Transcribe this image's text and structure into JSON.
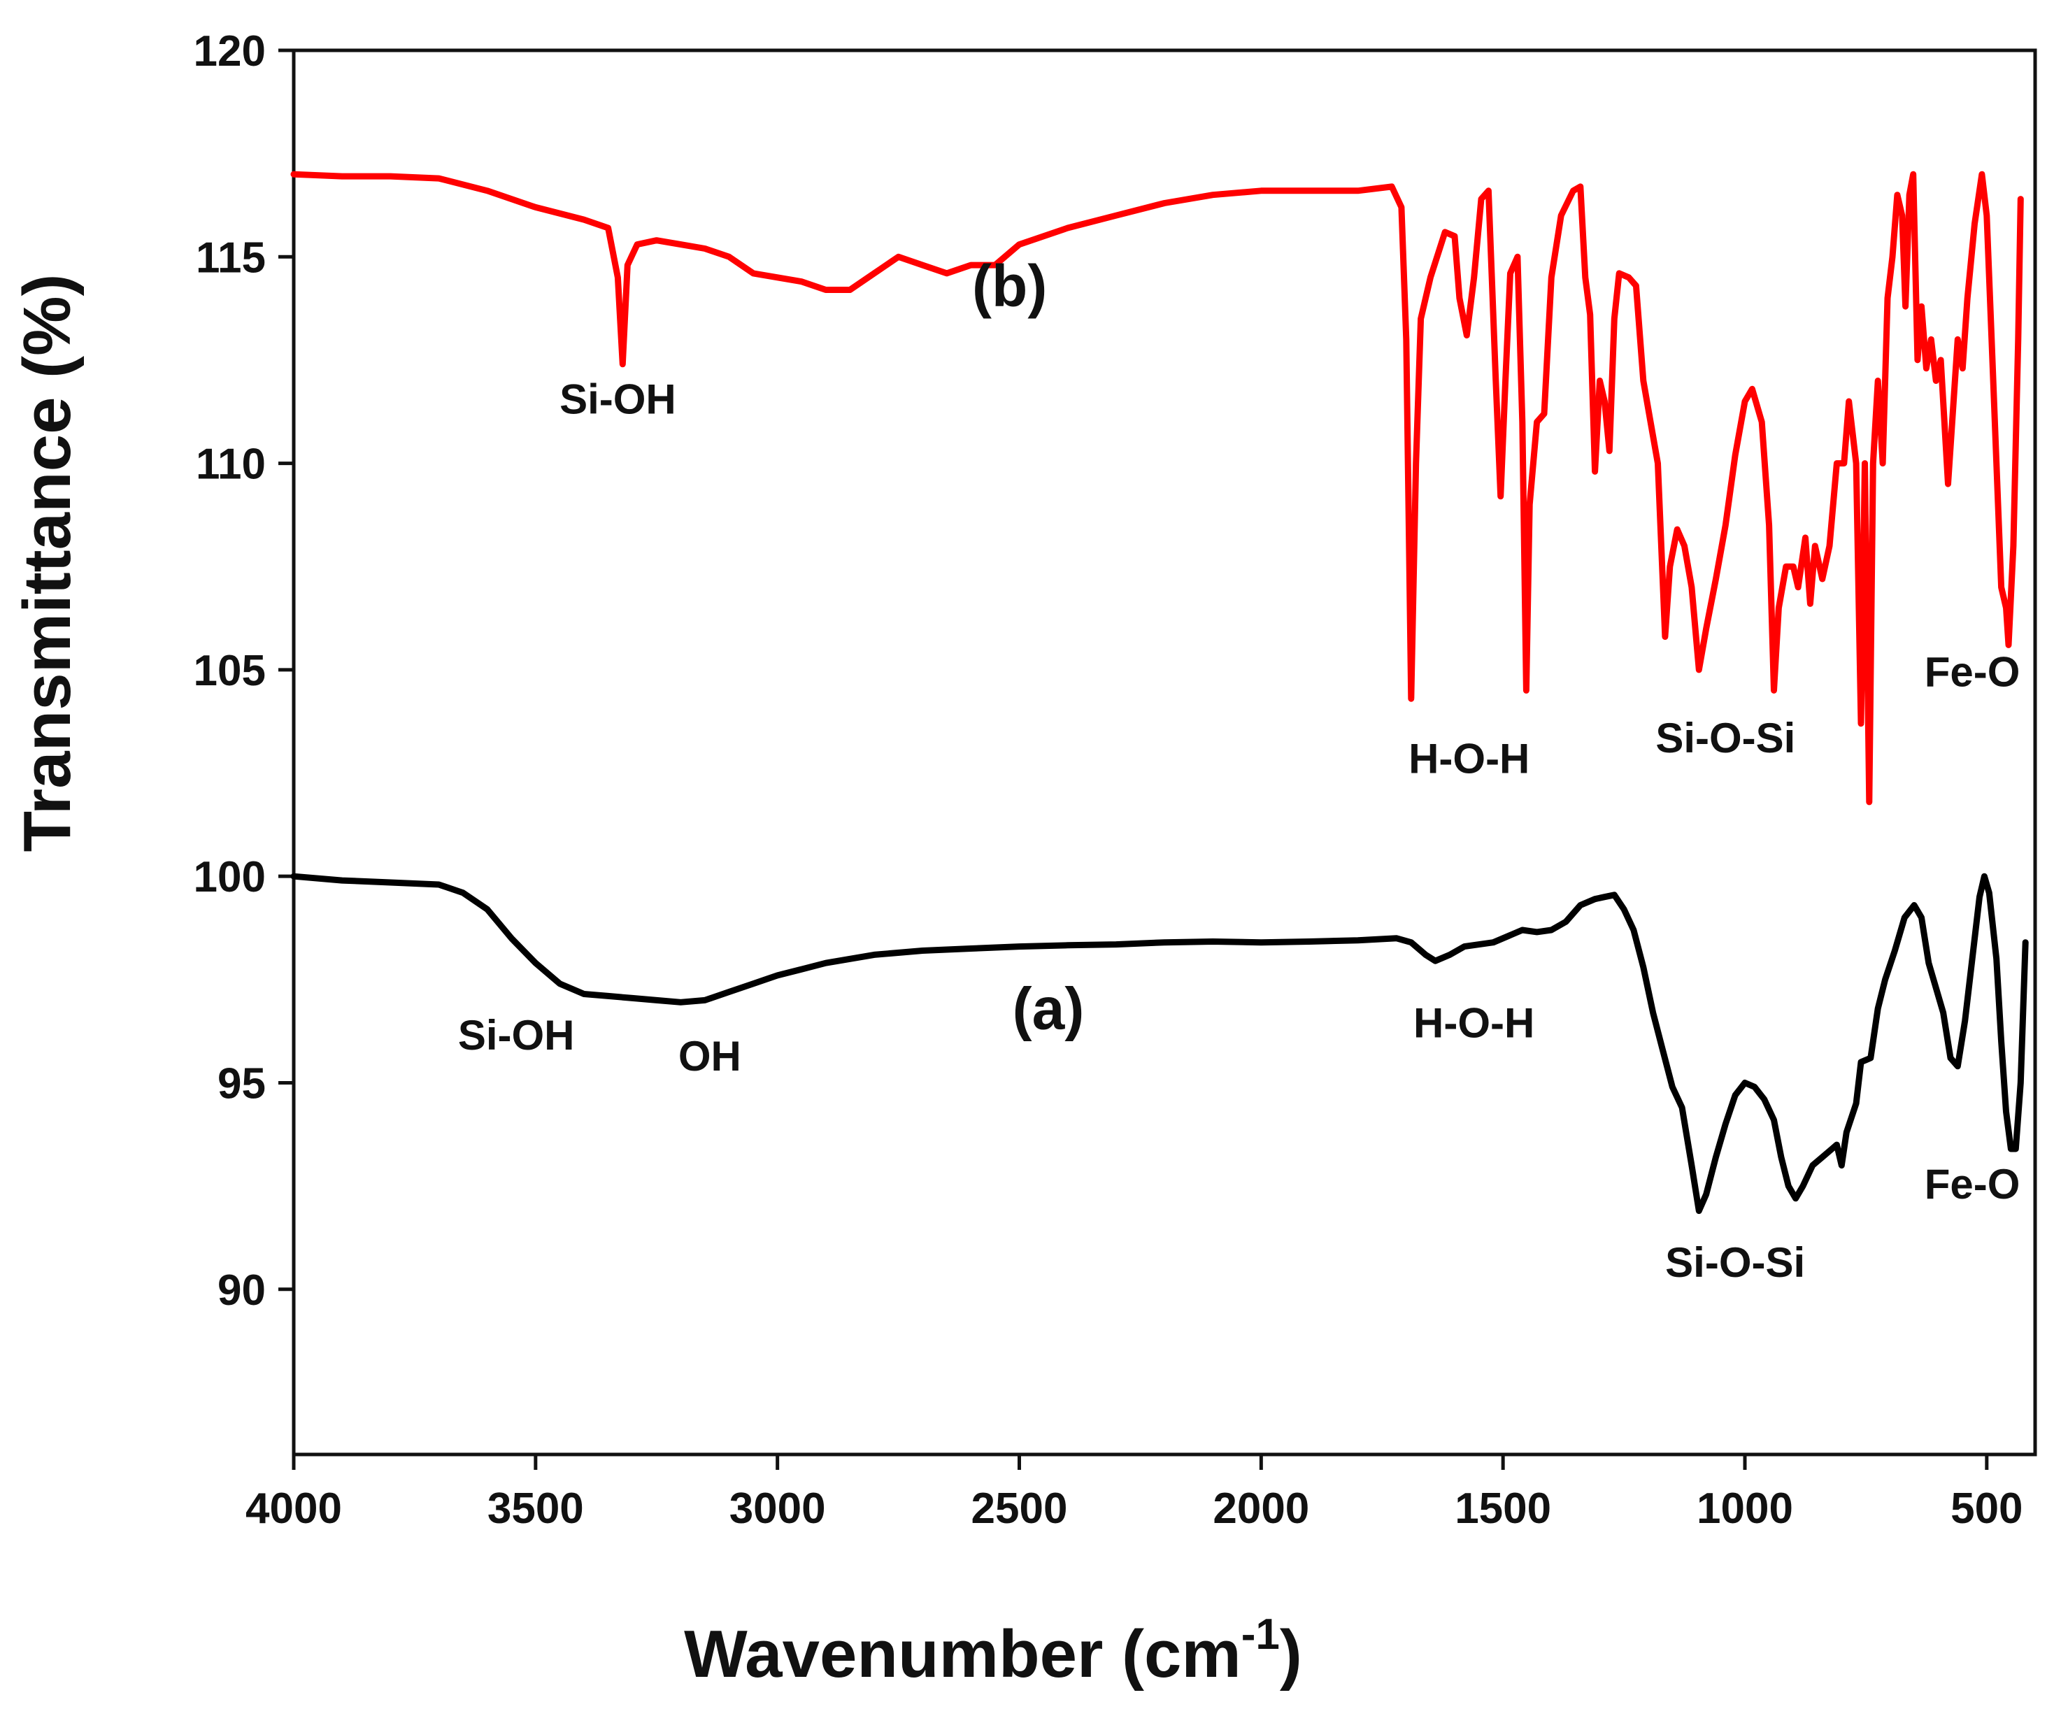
{
  "chart_data": {
    "type": "line",
    "title": "",
    "xlabel": "Wavenumber (cm",
    "xlabel_superscript": "-1",
    "xlabel_suffix": ")",
    "ylabel": "Transmittance (%)",
    "xlim": [
      4000,
      400
    ],
    "ylim": [
      86,
      120
    ],
    "x_reversed": true,
    "grid": false,
    "x_ticks": [
      4000,
      3500,
      3000,
      2500,
      2000,
      1500,
      1000,
      500
    ],
    "y_ticks": [
      90,
      95,
      100,
      105,
      110,
      115,
      120
    ],
    "series": [
      {
        "name": "(b)",
        "color": "#ff0000",
        "points": [
          [
            4000,
            117
          ],
          [
            3900,
            116.95
          ],
          [
            3800,
            116.95
          ],
          [
            3700,
            116.9
          ],
          [
            3600,
            116.6
          ],
          [
            3500,
            116.2
          ],
          [
            3400,
            115.9
          ],
          [
            3350,
            115.7
          ],
          [
            3330,
            114.5
          ],
          [
            3320,
            112.4
          ],
          [
            3310,
            114.8
          ],
          [
            3290,
            115.3
          ],
          [
            3250,
            115.4
          ],
          [
            3200,
            115.3
          ],
          [
            3150,
            115.2
          ],
          [
            3100,
            115
          ],
          [
            3050,
            114.6
          ],
          [
            3000,
            114.5
          ],
          [
            2950,
            114.4
          ],
          [
            2900,
            114.2
          ],
          [
            2850,
            114.2
          ],
          [
            2800,
            114.6
          ],
          [
            2750,
            115
          ],
          [
            2700,
            114.8
          ],
          [
            2650,
            114.6
          ],
          [
            2600,
            114.8
          ],
          [
            2550,
            114.8
          ],
          [
            2500,
            115.3
          ],
          [
            2400,
            115.7
          ],
          [
            2300,
            116
          ],
          [
            2200,
            116.3
          ],
          [
            2100,
            116.5
          ],
          [
            2000,
            116.6
          ],
          [
            1900,
            116.6
          ],
          [
            1800,
            116.6
          ],
          [
            1730,
            116.7
          ],
          [
            1710,
            116.2
          ],
          [
            1700,
            113
          ],
          [
            1690,
            104.3
          ],
          [
            1680,
            110
          ],
          [
            1670,
            113.5
          ],
          [
            1650,
            114.5
          ],
          [
            1620,
            115.6
          ],
          [
            1600,
            115.5
          ],
          [
            1590,
            114
          ],
          [
            1575,
            113.1
          ],
          [
            1560,
            114.5
          ],
          [
            1545,
            116.4
          ],
          [
            1530,
            116.6
          ],
          [
            1515,
            112
          ],
          [
            1505,
            109.2
          ],
          [
            1495,
            112
          ],
          [
            1485,
            114.6
          ],
          [
            1470,
            115
          ],
          [
            1460,
            111
          ],
          [
            1452,
            104.5
          ],
          [
            1445,
            109
          ],
          [
            1430,
            111
          ],
          [
            1415,
            111.2
          ],
          [
            1400,
            114.5
          ],
          [
            1380,
            116
          ],
          [
            1355,
            116.6
          ],
          [
            1340,
            116.7
          ],
          [
            1330,
            114.5
          ],
          [
            1320,
            113.6
          ],
          [
            1310,
            109.8
          ],
          [
            1300,
            112
          ],
          [
            1290,
            111.5
          ],
          [
            1280,
            110.3
          ],
          [
            1270,
            113.5
          ],
          [
            1260,
            114.6
          ],
          [
            1240,
            114.5
          ],
          [
            1225,
            114.3
          ],
          [
            1210,
            112
          ],
          [
            1195,
            111
          ],
          [
            1180,
            110
          ],
          [
            1165,
            105.8
          ],
          [
            1155,
            107.5
          ],
          [
            1140,
            108.4
          ],
          [
            1125,
            108
          ],
          [
            1110,
            107
          ],
          [
            1095,
            105
          ],
          [
            1080,
            106
          ],
          [
            1060,
            107.2
          ],
          [
            1040,
            108.5
          ],
          [
            1020,
            110.2
          ],
          [
            1000,
            111.5
          ],
          [
            985,
            111.8
          ],
          [
            965,
            111
          ],
          [
            950,
            108.5
          ],
          [
            940,
            104.5
          ],
          [
            930,
            106.5
          ],
          [
            915,
            107.5
          ],
          [
            900,
            107.5
          ],
          [
            890,
            107
          ],
          [
            875,
            108.2
          ],
          [
            865,
            106.6
          ],
          [
            855,
            108
          ],
          [
            840,
            107.2
          ],
          [
            825,
            108
          ],
          [
            810,
            110
          ],
          [
            795,
            110
          ],
          [
            785,
            111.5
          ],
          [
            770,
            110
          ],
          [
            760,
            103.7
          ],
          [
            752,
            110
          ],
          [
            743,
            101.8
          ],
          [
            735,
            110
          ],
          [
            725,
            112
          ],
          [
            715,
            110
          ],
          [
            705,
            114
          ],
          [
            695,
            115
          ],
          [
            685,
            116.5
          ],
          [
            675,
            116
          ],
          [
            668,
            113.8
          ],
          [
            660,
            116.5
          ],
          [
            652,
            117
          ],
          [
            643,
            112.5
          ],
          [
            635,
            113.8
          ],
          [
            625,
            112.3
          ],
          [
            615,
            113
          ],
          [
            605,
            112
          ],
          [
            595,
            112.5
          ],
          [
            580,
            109.5
          ],
          [
            560,
            113
          ],
          [
            550,
            112.3
          ],
          [
            540,
            114
          ],
          [
            525,
            115.8
          ],
          [
            510,
            117
          ],
          [
            500,
            116
          ],
          [
            490,
            113
          ],
          [
            480,
            110
          ],
          [
            470,
            107
          ],
          [
            460,
            106.5
          ],
          [
            455,
            105.6
          ],
          [
            445,
            108
          ],
          [
            435,
            113
          ],
          [
            430,
            116.4
          ]
        ]
      },
      {
        "name": "(a)",
        "color": "#000000",
        "points": [
          [
            4000,
            100
          ],
          [
            3900,
            99.9
          ],
          [
            3800,
            99.85
          ],
          [
            3700,
            99.8
          ],
          [
            3650,
            99.6
          ],
          [
            3600,
            99.2
          ],
          [
            3550,
            98.5
          ],
          [
            3500,
            97.9
          ],
          [
            3450,
            97.4
          ],
          [
            3400,
            97.15
          ],
          [
            3350,
            97.1
          ],
          [
            3300,
            97.05
          ],
          [
            3250,
            97
          ],
          [
            3200,
            96.95
          ],
          [
            3150,
            97
          ],
          [
            3100,
            97.2
          ],
          [
            3050,
            97.4
          ],
          [
            3000,
            97.6
          ],
          [
            2950,
            97.75
          ],
          [
            2900,
            97.9
          ],
          [
            2800,
            98.1
          ],
          [
            2700,
            98.2
          ],
          [
            2600,
            98.25
          ],
          [
            2500,
            98.3
          ],
          [
            2400,
            98.33
          ],
          [
            2300,
            98.35
          ],
          [
            2200,
            98.4
          ],
          [
            2100,
            98.42
          ],
          [
            2000,
            98.4
          ],
          [
            1900,
            98.42
          ],
          [
            1800,
            98.45
          ],
          [
            1720,
            98.5
          ],
          [
            1690,
            98.4
          ],
          [
            1660,
            98.1
          ],
          [
            1640,
            97.95
          ],
          [
            1610,
            98.1
          ],
          [
            1580,
            98.3
          ],
          [
            1520,
            98.4
          ],
          [
            1480,
            98.6
          ],
          [
            1460,
            98.7
          ],
          [
            1430,
            98.65
          ],
          [
            1400,
            98.7
          ],
          [
            1370,
            98.9
          ],
          [
            1340,
            99.3
          ],
          [
            1310,
            99.45
          ],
          [
            1290,
            99.5
          ],
          [
            1270,
            99.55
          ],
          [
            1250,
            99.2
          ],
          [
            1230,
            98.7
          ],
          [
            1210,
            97.8
          ],
          [
            1190,
            96.7
          ],
          [
            1170,
            95.8
          ],
          [
            1150,
            94.9
          ],
          [
            1130,
            94.4
          ],
          [
            1110,
            93
          ],
          [
            1095,
            91.9
          ],
          [
            1080,
            92.3
          ],
          [
            1060,
            93.2
          ],
          [
            1040,
            94
          ],
          [
            1020,
            94.7
          ],
          [
            1000,
            95
          ],
          [
            980,
            94.9
          ],
          [
            960,
            94.6
          ],
          [
            940,
            94.1
          ],
          [
            925,
            93.2
          ],
          [
            910,
            92.5
          ],
          [
            895,
            92.2
          ],
          [
            880,
            92.5
          ],
          [
            860,
            93
          ],
          [
            840,
            93.2
          ],
          [
            820,
            93.4
          ],
          [
            810,
            93.5
          ],
          [
            800,
            93
          ],
          [
            790,
            93.8
          ],
          [
            770,
            94.5
          ],
          [
            760,
            95.5
          ],
          [
            740,
            95.6
          ],
          [
            725,
            96.8
          ],
          [
            710,
            97.5
          ],
          [
            690,
            98.2
          ],
          [
            670,
            99
          ],
          [
            650,
            99.3
          ],
          [
            635,
            99
          ],
          [
            620,
            97.9
          ],
          [
            605,
            97.3
          ],
          [
            590,
            96.7
          ],
          [
            575,
            95.6
          ],
          [
            560,
            95.4
          ],
          [
            545,
            96.5
          ],
          [
            530,
            98
          ],
          [
            515,
            99.5
          ],
          [
            505,
            100
          ],
          [
            495,
            99.6
          ],
          [
            480,
            98
          ],
          [
            470,
            96
          ],
          [
            460,
            94.3
          ],
          [
            450,
            93.4
          ],
          [
            440,
            93.4
          ],
          [
            430,
            95
          ],
          [
            420,
            98.4
          ]
        ]
      }
    ],
    "annotations": [
      {
        "text": "Si-OH",
        "x": 3330,
        "y": 111.2
      },
      {
        "text": "(b)",
        "x": 2520,
        "y": 113.8
      },
      {
        "text": "H-O-H",
        "x": 1570,
        "y": 102.5
      },
      {
        "text": "Si-O-Si",
        "x": 1040,
        "y": 103
      },
      {
        "text": "Fe-O",
        "x": 530,
        "y": 104.6
      },
      {
        "text": "Si-OH",
        "x": 3540,
        "y": 95.8
      },
      {
        "text": "OH",
        "x": 3140,
        "y": 95.3
      },
      {
        "text": "(a)",
        "x": 2440,
        "y": 96.3
      },
      {
        "text": "H-O-H",
        "x": 1560,
        "y": 96.1
      },
      {
        "text": "Si-O-Si",
        "x": 1020,
        "y": 90.3
      },
      {
        "text": "Fe-O",
        "x": 530,
        "y": 92.2
      }
    ]
  }
}
